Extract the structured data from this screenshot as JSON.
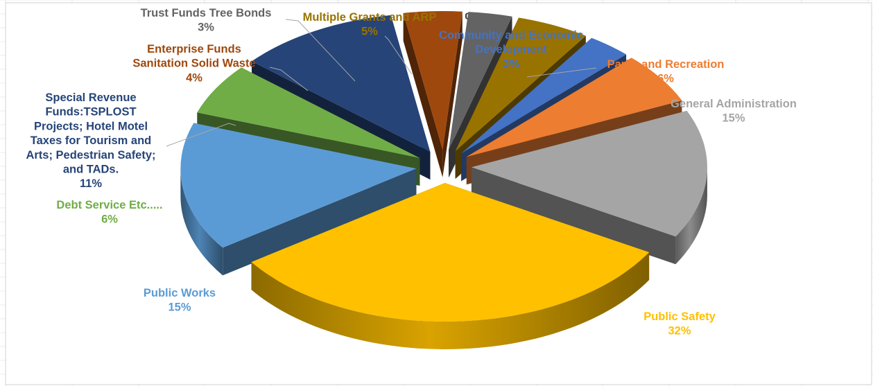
{
  "chart_data": {
    "type": "pie",
    "style": "3d-exploded",
    "title": "%",
    "start_angle_deg": 30,
    "series": [
      {
        "name": "Public Safety",
        "label_lines": [
          "Public Safety"
        ],
        "pct_label": "32%",
        "value": 32,
        "color": "#FFC000"
      },
      {
        "name": "Public Works",
        "label_lines": [
          "Public Works"
        ],
        "pct_label": "15%",
        "value": 15,
        "color": "#5B9BD5"
      },
      {
        "name": "Debt Service Etc.....",
        "label_lines": [
          "Debt Service  Etc....."
        ],
        "pct_label": "6%",
        "value": 6,
        "color": "#70AD47"
      },
      {
        "name": "Special Revenue Funds:TSPLOST Projects; Hotel Motel Taxes for Tourism and Arts; Pedestrian Safety; and TADs.",
        "label_lines": [
          "Special Revenue",
          "Funds:TSPLOST",
          "Projects; Hotel Motel",
          "Taxes for Tourism and",
          "Arts; Pedestrian Safety;",
          "and TADs."
        ],
        "pct_label": "11%",
        "value": 11,
        "color": "#264478"
      },
      {
        "name": "Enterprise Funds Sanitation Solid Waste",
        "label_lines": [
          "Enterprise Funds",
          "Sanitation Solid Waste"
        ],
        "pct_label": "4%",
        "value": 4,
        "color": "#9E480E"
      },
      {
        "name": "Trust Funds Tree Bonds",
        "label_lines": [
          "Trust Funds Tree Bonds"
        ],
        "pct_label": "3%",
        "value": 3,
        "color": "#636363"
      },
      {
        "name": "Multiple Grants and ARP",
        "label_lines": [
          "Multiple Grants and ARP"
        ],
        "pct_label": "5%",
        "value": 5,
        "color": "#997300"
      },
      {
        "name": "Community and Economic Development",
        "label_lines": [
          "Community and Economic",
          "Development"
        ],
        "pct_label": "3%",
        "value": 3,
        "color": "#4472C4"
      },
      {
        "name": "Parks and Recreation",
        "label_lines": [
          "Parks and Recreation"
        ],
        "pct_label": "6%",
        "value": 6,
        "color": "#ED7D31"
      },
      {
        "name": "General Administration",
        "label_lines": [
          "General Administration"
        ],
        "pct_label": "15%",
        "value": 15,
        "color": "#A5A5A5"
      }
    ]
  }
}
